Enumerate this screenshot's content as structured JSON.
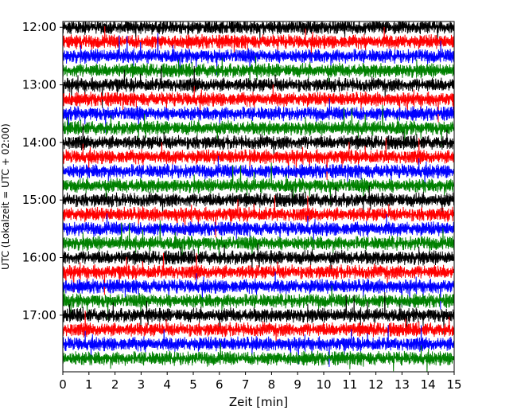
{
  "chart_data": {
    "type": "line",
    "title": "",
    "xlabel": "Zeit  [min]",
    "ylabel": "UTC (Lokalzeit = UTC + 02:00)",
    "xlim": [
      0,
      15
    ],
    "x_ticks": [
      "0",
      "1",
      "2",
      "3",
      "4",
      "5",
      "6",
      "7",
      "8",
      "9",
      "10",
      "11",
      "12",
      "13",
      "14",
      "15"
    ],
    "y_ticks": [
      "12:00",
      "13:00",
      "14:00",
      "15:00",
      "16:00",
      "17:00"
    ],
    "y_tick_times_min": [
      720,
      780,
      840,
      900,
      960,
      1020
    ],
    "ylim_time_min": [
      1079,
      714
    ],
    "trace_start_time_min": 720,
    "trace_interval_min": 15,
    "trace_count": 24,
    "trace_colors": [
      "#000000",
      "#ff0000",
      "#0000ff",
      "#008000"
    ],
    "grid": false,
    "legend": "none"
  }
}
